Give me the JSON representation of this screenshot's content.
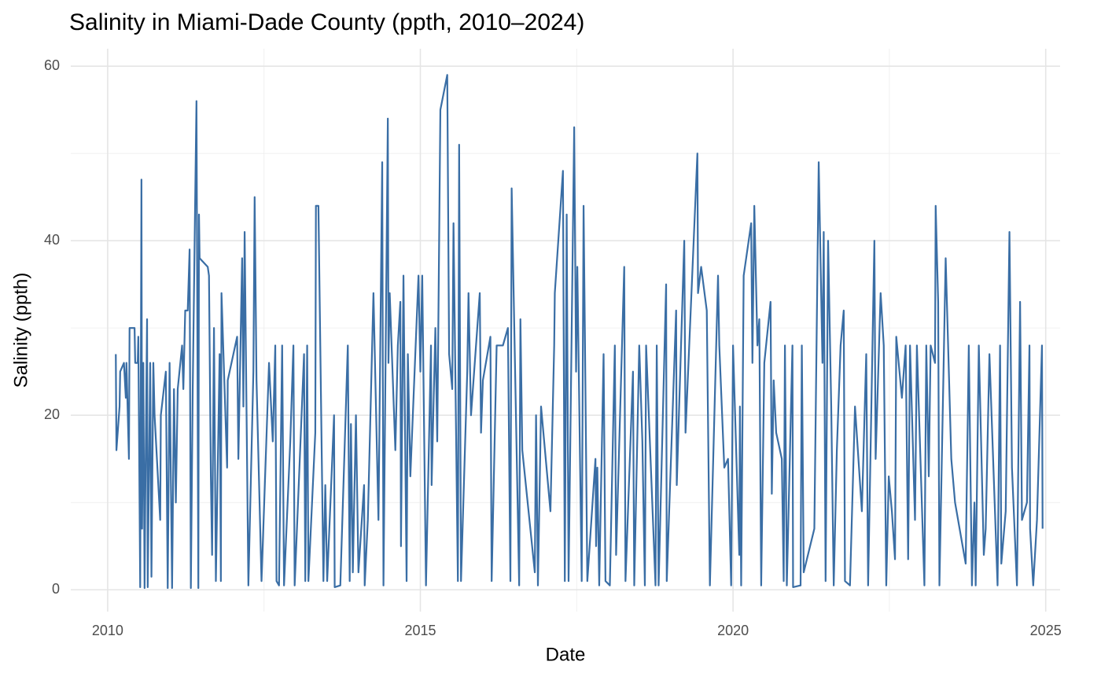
{
  "chart_data": {
    "type": "line",
    "title": "Salinity in Miami-Dade County (ppth, 2010–2024)",
    "x_label": "Date",
    "y_label": "Salinity (ppth)",
    "color": "#3a6ea5",
    "grid": true,
    "xlim": [
      2009.41,
      2025.23
    ],
    "ylim": [
      -2.5,
      62
    ],
    "xticks": [
      2010,
      2015,
      2020,
      2025
    ],
    "yticks": [
      0,
      20,
      40,
      60
    ],
    "x": [
      2010.13,
      2010.14,
      2010.19,
      2010.2,
      2010.26,
      2010.29,
      2010.3,
      2010.34,
      2010.35,
      2010.43,
      2010.44,
      2010.48,
      2010.49,
      2010.52,
      2010.54,
      2010.55,
      2010.57,
      2010.59,
      2010.6,
      2010.63,
      2010.64,
      2010.68,
      2010.7,
      2010.73,
      2010.75,
      2010.84,
      2010.85,
      2010.93,
      2010.96,
      2010.99,
      2011.03,
      2011.06,
      2011.09,
      2011.12,
      2011.19,
      2011.21,
      2011.24,
      2011.28,
      2011.31,
      2011.33,
      2011.36,
      2011.42,
      2011.45,
      2011.46,
      2011.47,
      2011.6,
      2011.62,
      2011.65,
      2011.67,
      2011.7,
      2011.73,
      2011.79,
      2011.81,
      2011.82,
      2011.91,
      2011.92,
      2012.07,
      2012.09,
      2012.15,
      2012.17,
      2012.19,
      2012.25,
      2012.33,
      2012.35,
      2012.38,
      2012.46,
      2012.58,
      2012.64,
      2012.68,
      2012.7,
      2012.74,
      2012.79,
      2012.82,
      2012.92,
      2012.97,
      2012.99,
      2013.14,
      2013.16,
      2013.19,
      2013.21,
      2013.32,
      2013.33,
      2013.37,
      2013.45,
      2013.48,
      2013.51,
      2013.62,
      2013.63,
      2013.72,
      2013.84,
      2013.87,
      2013.89,
      2013.92,
      2013.97,
      2014.01,
      2014.1,
      2014.11,
      2014.16,
      2014.25,
      2014.33,
      2014.39,
      2014.41,
      2014.48,
      2014.49,
      2014.51,
      2014.6,
      2014.64,
      2014.68,
      2014.69,
      2014.73,
      2014.78,
      2014.8,
      2014.84,
      2014.97,
      2015.0,
      2015.03,
      2015.09,
      2015.17,
      2015.18,
      2015.24,
      2015.27,
      2015.32,
      2015.43,
      2015.46,
      2015.51,
      2015.53,
      2015.6,
      2015.62,
      2015.65,
      2015.75,
      2015.77,
      2015.81,
      2015.95,
      2015.97,
      2016.0,
      2016.12,
      2016.14,
      2016.22,
      2016.32,
      2016.4,
      2016.44,
      2016.46,
      2016.58,
      2016.6,
      2016.63,
      2016.83,
      2016.85,
      2016.88,
      2016.93,
      2017.08,
      2017.14,
      2017.15,
      2017.28,
      2017.31,
      2017.34,
      2017.37,
      2017.46,
      2017.49,
      2017.51,
      2017.58,
      2017.61,
      2017.63,
      2017.67,
      2017.8,
      2017.81,
      2017.83,
      2017.86,
      2017.93,
      2017.96,
      2018.03,
      2018.11,
      2018.13,
      2018.26,
      2018.28,
      2018.4,
      2018.42,
      2018.5,
      2018.55,
      2018.59,
      2018.61,
      2018.76,
      2018.78,
      2018.81,
      2018.93,
      2018.94,
      2019.09,
      2019.1,
      2019.22,
      2019.24,
      2019.43,
      2019.44,
      2019.49,
      2019.58,
      2019.63,
      2019.76,
      2019.78,
      2019.86,
      2019.92,
      2019.97,
      2020.0,
      2020.1,
      2020.11,
      2020.13,
      2020.17,
      2020.29,
      2020.31,
      2020.34,
      2020.39,
      2020.42,
      2020.45,
      2020.5,
      2020.6,
      2020.62,
      2020.65,
      2020.69,
      2020.78,
      2020.81,
      2020.83,
      2020.86,
      2020.95,
      2020.96,
      2021.08,
      2021.1,
      2021.13,
      2021.3,
      2021.37,
      2021.43,
      2021.45,
      2021.48,
      2021.52,
      2021.57,
      2021.61,
      2021.66,
      2021.72,
      2021.77,
      2021.79,
      2021.87,
      2021.95,
      2022.06,
      2022.13,
      2022.16,
      2022.26,
      2022.28,
      2022.36,
      2022.41,
      2022.45,
      2022.49,
      2022.54,
      2022.59,
      2022.61,
      2022.7,
      2022.76,
      2022.8,
      2022.83,
      2022.91,
      2022.94,
      2023.06,
      2023.09,
      2023.13,
      2023.16,
      2023.23,
      2023.24,
      2023.28,
      2023.3,
      2023.4,
      2023.49,
      2023.55,
      2023.72,
      2023.77,
      2023.82,
      2023.86,
      2023.88,
      2023.93,
      2024.01,
      2024.04,
      2024.1,
      2024.23,
      2024.27,
      2024.29,
      2024.36,
      2024.42,
      2024.46,
      2024.54,
      2024.59,
      2024.62,
      2024.7,
      2024.74,
      2024.75,
      2024.8,
      2024.86,
      2024.94,
      2024.95
    ],
    "values": [
      27,
      16,
      21,
      25,
      26,
      22,
      26,
      15,
      30,
      30,
      26,
      26,
      29,
      0.3,
      47,
      7,
      26,
      0.2,
      9.5,
      31,
      0.3,
      26,
      1.5,
      26,
      20,
      8,
      20,
      25,
      0.2,
      26,
      0.2,
      23,
      10,
      23,
      28,
      23,
      32,
      32,
      39,
      0.2,
      23,
      56,
      0.2,
      43,
      38,
      37,
      36,
      13,
      4,
      30,
      1,
      27,
      1,
      34,
      14,
      24,
      29,
      15,
      38,
      21,
      41,
      0.5,
      25,
      45,
      24,
      1,
      26,
      17,
      28,
      1,
      0.5,
      28,
      0.5,
      17,
      28,
      0.5,
      27,
      1,
      28,
      1,
      18,
      44,
      44,
      1,
      12,
      1,
      20,
      0.3,
      0.5,
      28,
      1,
      19,
      2,
      20,
      2,
      12,
      0.5,
      8,
      34,
      8,
      49,
      0.5,
      54,
      26,
      34,
      16,
      28,
      33,
      5,
      36,
      1,
      27,
      13,
      36,
      25,
      36,
      0.5,
      28,
      12,
      30,
      17,
      55,
      59,
      27,
      23,
      42,
      1,
      51,
      1,
      25,
      34,
      20,
      34,
      18,
      24,
      29,
      1,
      28,
      28,
      30,
      1,
      46,
      0.5,
      31,
      16,
      2,
      20,
      0.5,
      21,
      9,
      28,
      34,
      48,
      1,
      43,
      1,
      53,
      25,
      37,
      1,
      44,
      30,
      1,
      15,
      5,
      14,
      0.5,
      27,
      1,
      0.5,
      28,
      4,
      37,
      1,
      25,
      0.5,
      28,
      17,
      0.5,
      28,
      0.5,
      28,
      0.5,
      35,
      1,
      32,
      12,
      40,
      18,
      50,
      34,
      37,
      32,
      0.5,
      36,
      28,
      14,
      15,
      0.5,
      28,
      4,
      21,
      0.5,
      36,
      42,
      26,
      44,
      28,
      31,
      0.5,
      26,
      33,
      11,
      24,
      18,
      15,
      1,
      28,
      0.5,
      28,
      0.3,
      0.5,
      28,
      2,
      7,
      49,
      26,
      41,
      1,
      40,
      21,
      0.5,
      16,
      28,
      32,
      1,
      0.5,
      21,
      9,
      27,
      0.5,
      40,
      15,
      34,
      28,
      0.5,
      13,
      9,
      3.5,
      29,
      22,
      28,
      3.5,
      28,
      8,
      28,
      0.5,
      28,
      13,
      28,
      26,
      44,
      33,
      0.5,
      38,
      15,
      10,
      3,
      28,
      0.5,
      10,
      0.5,
      28,
      4,
      7,
      27,
      0.5,
      28,
      3,
      9,
      41,
      14,
      0.5,
      33,
      8,
      10,
      28,
      7,
      0.5,
      8,
      28,
      7
    ]
  }
}
